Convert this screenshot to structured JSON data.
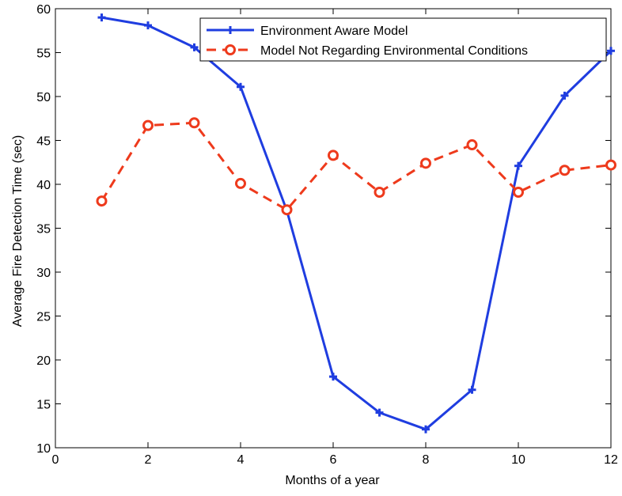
{
  "chart_data": {
    "type": "line",
    "title": "",
    "xlabel": "Months of a year",
    "ylabel": "Average Fire Detection Time (sec)",
    "xlim": [
      0,
      12
    ],
    "ylim": [
      10,
      60
    ],
    "xticks": [
      0,
      2,
      4,
      6,
      8,
      10,
      12
    ],
    "yticks": [
      10,
      15,
      20,
      25,
      30,
      35,
      40,
      45,
      50,
      55,
      60
    ],
    "grid": false,
    "legend_position": "top-right",
    "x": [
      1,
      2,
      3,
      4,
      5,
      6,
      7,
      8,
      9,
      10,
      11,
      12
    ],
    "series": [
      {
        "name": "Environment Aware Model",
        "color": "#1f3de0",
        "line_style": "solid",
        "marker": "plus",
        "values": [
          59.0,
          58.1,
          55.6,
          51.1,
          37.0,
          18.1,
          14.0,
          12.1,
          16.6,
          42.1,
          50.1,
          55.2
        ]
      },
      {
        "name": "Model Not Regarding Environmental Conditions",
        "color": "#ee3a1c",
        "line_style": "dashed",
        "marker": "circle",
        "values": [
          38.1,
          46.7,
          47.0,
          40.1,
          37.1,
          43.3,
          39.1,
          42.4,
          44.5,
          39.1,
          41.6,
          42.2
        ]
      }
    ]
  }
}
